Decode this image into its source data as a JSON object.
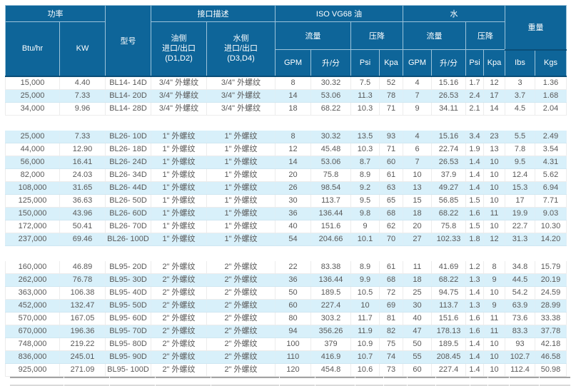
{
  "colors": {
    "header_bg": "#0e6599",
    "header_line": "#9cc3da",
    "row_alt": "#d8f0fa",
    "text": "#595959"
  },
  "table": {
    "header": {
      "power": "功率",
      "btu": "Btu/hr",
      "kw": "KW",
      "model": "型号",
      "interface": "接口描述",
      "oil_side_line1": "油侧",
      "oil_side_line2": "进口/出口",
      "oil_side_line3": "(D1,D2)",
      "water_side_line1": "水侧",
      "water_side_line2": "进口/出口",
      "water_side_line3": "(D3,D4)",
      "iso_oil": "ISO VG68 油",
      "water": "水",
      "flow": "流量",
      "pressure_drop": "压降",
      "gpm": "GPM",
      "lpm": "升/分",
      "psi": "Psi",
      "kpa": "Kpa",
      "weight": "重量",
      "lbs": "Ibs",
      "kgs": "Kgs"
    },
    "col_keys": [
      "btu-hr",
      "kw",
      "model",
      "oil-port",
      "water-port",
      "oil-gpm",
      "oil-lpm",
      "oil-psi",
      "oil-kpa",
      "water-gpm",
      "water-lpm",
      "water-psi",
      "water-kpa",
      "lbs",
      "kgs"
    ],
    "groups": [
      {
        "series": "BL14",
        "rows": [
          [
            "15,000",
            "4.40",
            "BL14- 14D",
            "3/4\" 外螺纹",
            "3/4\" 外螺纹",
            "8",
            "30.32",
            "7.5",
            "52",
            "4",
            "15.16",
            "1.7",
            "12",
            "3",
            "1.36"
          ],
          [
            "25,000",
            "7.33",
            "BL14- 20D",
            "3/4\" 外螺纹",
            "3/4\" 外螺纹",
            "14",
            "53.06",
            "11.3",
            "78",
            "7",
            "26.53",
            "2.4",
            "17",
            "3.7",
            "1.68"
          ],
          [
            "34,000",
            "9.96",
            "BL14- 28D",
            "3/4\" 外螺纹",
            "3/4\" 外螺纹",
            "18",
            "68.22",
            "10.3",
            "71",
            "9",
            "34.11",
            "2.1",
            "14",
            "4.5",
            "2.04"
          ]
        ]
      },
      {
        "series": "BL26",
        "rows": [
          [
            "25,000",
            "7.33",
            "BL26- 10D",
            "1\" 外螺纹",
            "1\" 外螺纹",
            "8",
            "30.32",
            "13.5",
            "93",
            "4",
            "15.16",
            "3.4",
            "23",
            "5.5",
            "2.49"
          ],
          [
            "44,000",
            "12.90",
            "BL26- 18D",
            "1\" 外螺纹",
            "1\" 外螺纹",
            "12",
            "45.48",
            "10.3",
            "71",
            "6",
            "22.74",
            "1.9",
            "13",
            "7.8",
            "3.54"
          ],
          [
            "56,000",
            "16.41",
            "BL26- 24D",
            "1\" 外螺纹",
            "1\" 外螺纹",
            "14",
            "53.06",
            "8.7",
            "60",
            "7",
            "26.53",
            "1.4",
            "10",
            "9.5",
            "4.31"
          ],
          [
            "82,000",
            "24.03",
            "BL26- 34D",
            "1\" 外螺纹",
            "1\" 外螺纹",
            "20",
            "75.8",
            "8.9",
            "61",
            "10",
            "37.9",
            "1.4",
            "10",
            "12.4",
            "5.62"
          ],
          [
            "108,000",
            "31.65",
            "BL26- 44D",
            "1\" 外螺纹",
            "1\" 外螺纹",
            "26",
            "98.54",
            "9.2",
            "63",
            "13",
            "49.27",
            "1.4",
            "10",
            "15.3",
            "6.94"
          ],
          [
            "125,000",
            "36.63",
            "BL26- 50D",
            "1\" 外螺纹",
            "1\" 外螺纹",
            "30",
            "113.7",
            "9.5",
            "65",
            "15",
            "56.85",
            "1.5",
            "10",
            "17",
            "7.71"
          ],
          [
            "150,000",
            "43.96",
            "BL26- 60D",
            "1\" 外螺纹",
            "1\" 外螺纹",
            "36",
            "136.44",
            "9.8",
            "68",
            "18",
            "68.22",
            "1.6",
            "11",
            "19.9",
            "9.03"
          ],
          [
            "172,000",
            "50.41",
            "BL26- 70D",
            "1\" 外螺纹",
            "1\" 外螺纹",
            "40",
            "151.6",
            "9",
            "62",
            "20",
            "75.8",
            "1.5",
            "10",
            "22.7",
            "10.30"
          ],
          [
            "237,000",
            "69.46",
            "BL26- 100D",
            "1\" 外螺纹",
            "1\" 外螺纹",
            "54",
            "204.66",
            "10.1",
            "70",
            "27",
            "102.33",
            "1.8",
            "12",
            "31.3",
            "14.20"
          ]
        ]
      },
      {
        "series": "BL95",
        "rows": [
          [
            "160,000",
            "46.89",
            "BL95- 20D",
            "2\" 外螺纹",
            "2\" 外螺纹",
            "22",
            "83.38",
            "8.9",
            "61",
            "11",
            "41.69",
            "1.2",
            "8",
            "34.8",
            "15.79"
          ],
          [
            "262,000",
            "76.78",
            "BL95- 30D",
            "2\" 外螺纹",
            "2\" 外螺纹",
            "36",
            "136.44",
            "9.9",
            "68",
            "18",
            "68.22",
            "1.3",
            "9",
            "44.5",
            "20.19"
          ],
          [
            "363,000",
            "106.38",
            "BL95- 40D",
            "2\" 外螺纹",
            "2\" 外螺纹",
            "50",
            "189.5",
            "10.5",
            "72",
            "25",
            "94.75",
            "1.4",
            "10",
            "54.2",
            "24.59"
          ],
          [
            "452,000",
            "132.47",
            "BL95- 50D",
            "2\" 外螺纹",
            "2\" 外螺纹",
            "60",
            "227.4",
            "10",
            "69",
            "30",
            "113.7",
            "1.3",
            "9",
            "63.9",
            "28.99"
          ],
          [
            "570,000",
            "167.05",
            "BL95- 60D",
            "2\" 外螺纹",
            "2\" 外螺纹",
            "80",
            "303.2",
            "11.7",
            "81",
            "40",
            "151.6",
            "1.6",
            "11",
            "73.6",
            "33.38"
          ],
          [
            "670,000",
            "196.36",
            "BL95- 70D",
            "2\" 外螺纹",
            "2\" 外螺纹",
            "94",
            "356.26",
            "11.9",
            "82",
            "47",
            "178.13",
            "1.6",
            "11",
            "83.3",
            "37.78"
          ],
          [
            "748,000",
            "219.22",
            "BL95- 80D",
            "2\" 外螺纹",
            "2\" 外螺纹",
            "100",
            "379",
            "10.9",
            "75",
            "50",
            "189.5",
            "1.4",
            "10",
            "93",
            "42.18"
          ],
          [
            "836,000",
            "245.01",
            "BL95- 90D",
            "2\" 外螺纹",
            "2\" 外螺纹",
            "110",
            "416.9",
            "10.7",
            "74",
            "55",
            "208.45",
            "1.4",
            "10",
            "102.7",
            "46.58"
          ],
          [
            "925,000",
            "271.09",
            "BL95- 100D",
            "2\" 外螺纹",
            "2\" 外螺纹",
            "120",
            "454.8",
            "10.6",
            "73",
            "60",
            "227.4",
            "1.4",
            "10",
            "112.4",
            "50.98"
          ]
        ]
      }
    ]
  }
}
